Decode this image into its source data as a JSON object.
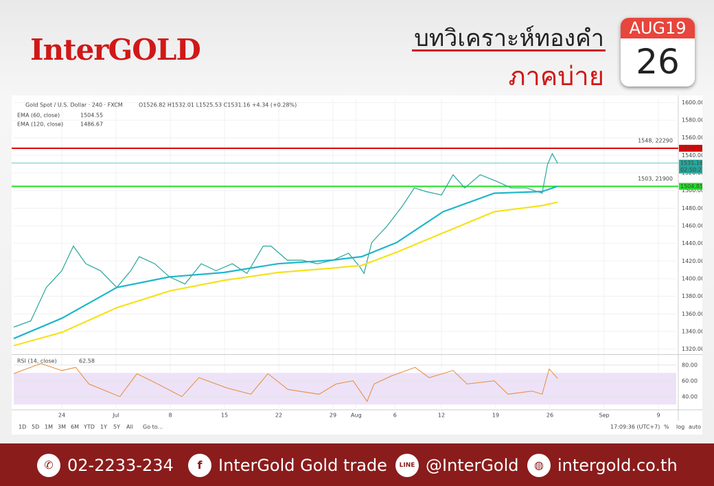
{
  "header": {
    "brand": "InterGOLD",
    "title": "บทวิเคราะห์ทองคำ",
    "subtitle": "ภาคบ่าย",
    "month": "AUG19",
    "day": "26"
  },
  "chart_data": {
    "type": "line",
    "title": "Gold Spot / U.S. Dollar · 240 · FXCM",
    "quote": "O1526.82 H1532.01 L1525.53 C1531.16 +4.34 (+0.28%)",
    "xlim": [
      -6.2,
      79.3
    ],
    "ylim": [
      1315,
      1605
    ],
    "yticks": [
      {
        "value": 1320,
        "label": "1320.00"
      },
      {
        "value": 1340,
        "label": "1340.00"
      },
      {
        "value": 1360,
        "label": "1360.00"
      },
      {
        "value": 1380,
        "label": "1380.00"
      },
      {
        "value": 1400,
        "label": "1400.00"
      },
      {
        "value": 1420,
        "label": "1420.00"
      },
      {
        "value": 1440,
        "label": "1440.00"
      },
      {
        "value": 1460,
        "label": "1460.00"
      },
      {
        "value": 1480,
        "label": "1480.00"
      },
      {
        "value": 1500,
        "label": "1500.00"
      },
      {
        "value": 1520,
        "label": "1520.00"
      },
      {
        "value": 1540,
        "label": "1540.00"
      },
      {
        "value": 1560,
        "label": "1560.00"
      },
      {
        "value": 1580,
        "label": "1580.00"
      },
      {
        "value": 1600,
        "label": "1600.00"
      }
    ],
    "xticks": [
      {
        "value": 0,
        "label": "24"
      },
      {
        "value": 7,
        "label": "Jul"
      },
      {
        "value": 14,
        "label": "8"
      },
      {
        "value": 21,
        "label": "15"
      },
      {
        "value": 28,
        "label": "22"
      },
      {
        "value": 35,
        "label": "29"
      },
      {
        "value": 38,
        "label": "Aug"
      },
      {
        "value": 43,
        "label": "6"
      },
      {
        "value": 49,
        "label": "12"
      },
      {
        "value": 56,
        "label": "19"
      },
      {
        "value": 63,
        "label": "26"
      },
      {
        "value": 70,
        "label": "Sep"
      },
      {
        "value": 77,
        "label": "9"
      }
    ],
    "grid": true,
    "series": [
      {
        "name": "Gold Spot / U.S. Dollar",
        "color": "#26a69a",
        "x": [
          -6.2,
          -4.0,
          -2.0,
          0,
          1.5,
          3.1,
          5.0,
          7.1,
          8.9,
          10.0,
          12.0,
          13.9,
          15.9,
          18.0,
          19.9,
          22.0,
          23.9,
          26.0,
          27.0,
          29.1,
          31.0,
          33.0,
          35.0,
          37.0,
          38.5,
          39.0,
          40.0,
          42.0,
          44.0,
          45.5,
          47.0,
          49.0,
          50.5,
          52.0,
          54.0,
          56.0,
          58.0,
          60.0,
          62.0,
          62.7,
          63.3,
          64.0
        ],
        "values": [
          1345,
          1352,
          1390,
          1409,
          1437,
          1417,
          1409,
          1390,
          1409,
          1425,
          1417,
          1402,
          1394,
          1417,
          1409,
          1417,
          1406,
          1437,
          1437,
          1421,
          1421,
          1417,
          1421,
          1429,
          1413,
          1406,
          1441,
          1460,
          1483,
          1503,
          1499,
          1495,
          1518,
          1503,
          1518,
          1511,
          1503,
          1503,
          1497,
          1530,
          1542,
          1531
        ]
      },
      {
        "name": "EMA (60, close)",
        "color": "#1fb6c9",
        "legend_value": 1504.55,
        "x": [
          -6.2,
          0,
          7.1,
          13.9,
          20.9,
          27.9,
          34.9,
          38.7,
          43.2,
          49.2,
          55.8,
          62.0,
          64.0
        ],
        "values": [
          1332,
          1355,
          1390,
          1402,
          1407,
          1417,
          1421,
          1425,
          1441,
          1476,
          1497,
          1499,
          1505
        ]
      },
      {
        "name": "EMA (120, close)",
        "color": "#f5e21b",
        "legend_value": 1486.67,
        "x": [
          -6.2,
          0,
          7.1,
          13.9,
          20.9,
          27.9,
          34.9,
          38.7,
          43.2,
          49.2,
          55.8,
          62.0,
          64.0
        ],
        "values": [
          1324,
          1339,
          1367,
          1386,
          1398,
          1407,
          1412,
          1415,
          1430,
          1452,
          1476,
          1483,
          1487
        ]
      }
    ],
    "levels": [
      {
        "value": 1548.12,
        "annotation": "1548, 22290",
        "color": "#e00000"
      },
      {
        "value": 1504.85,
        "annotation": "1503, 21900",
        "color": "#22dd22"
      }
    ],
    "current": {
      "value": 1531.16,
      "countdown": "02:50:23",
      "color": "#26a69a"
    },
    "rsi": {
      "name": "RSI (14, close)",
      "legend_value": 62.58,
      "color": "#e8893a",
      "ylim": [
        25,
        92
      ],
      "band": [
        30,
        70
      ],
      "yticks": [
        {
          "value": 40,
          "label": "40.00"
        },
        {
          "value": 60,
          "label": "60.00"
        },
        {
          "value": 80,
          "label": "80.00"
        }
      ],
      "x": [
        -6.2,
        -2.7,
        0,
        1.8,
        3.5,
        7.5,
        9.7,
        12.4,
        15.5,
        17.7,
        21.3,
        24.4,
        26.6,
        29.2,
        33.2,
        35.4,
        37.6,
        39.4,
        40.3,
        42.5,
        45.6,
        47.4,
        50.5,
        52.3,
        55.8,
        57.6,
        60.7,
        62.0,
        62.9,
        64.0
      ],
      "values": [
        69,
        82,
        73,
        77,
        56,
        40,
        69,
        56,
        40,
        64,
        51,
        43,
        69,
        49,
        43,
        56,
        60,
        34,
        56,
        66,
        77,
        64,
        73,
        56,
        60,
        43,
        47,
        43,
        75,
        63
      ]
    },
    "toolbar": [
      "1D",
      "5D",
      "1M",
      "3M",
      "6M",
      "YTD",
      "1Y",
      "5Y",
      "All",
      "Go to..."
    ],
    "clock": "17:09:36 (UTC+7)",
    "scale_buttons": [
      "%",
      "log",
      "auto"
    ]
  },
  "footer": {
    "phone": "02-2233-234",
    "facebook": "InterGold Gold trade",
    "line": "@InterGold",
    "web": "intergold.co.th"
  }
}
